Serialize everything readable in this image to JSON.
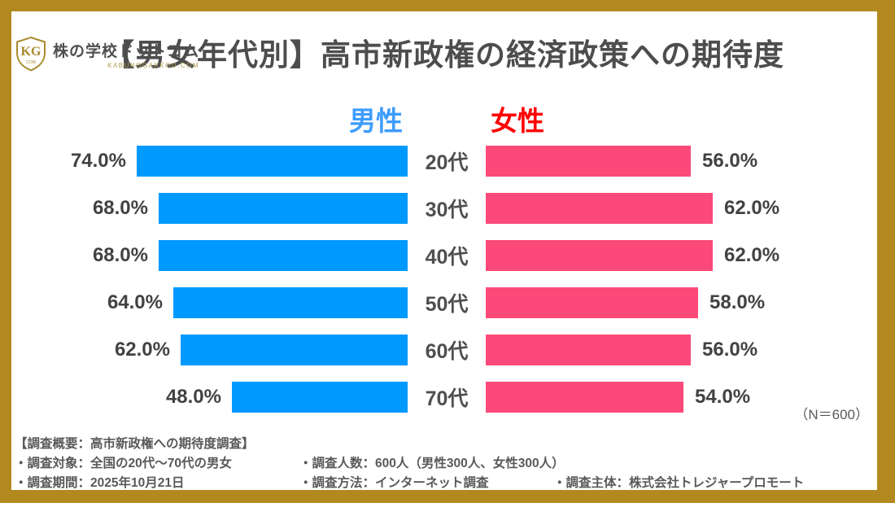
{
  "logo": {
    "monogram": "KG",
    "monogram_sub": "COM",
    "name": "株の学校ドットコム",
    "domain": "KABUNOGAKKOU.COM",
    "gold": "#A98B2D"
  },
  "title": "【男女年代別】高市新政権の経済政策への期待度",
  "chart_data": {
    "type": "bar",
    "orientation": "horizontal-diverging",
    "title": "【男女年代別】高市新政権の経済政策への期待度",
    "categories": [
      "20代",
      "30代",
      "40代",
      "50代",
      "60代",
      "70代"
    ],
    "series": [
      {
        "name": "男性",
        "color": "#0099FF",
        "label_color": "#3E9CFF",
        "values": [
          74.0,
          68.0,
          68.0,
          64.0,
          62.0,
          48.0
        ]
      },
      {
        "name": "女性",
        "color": "#FB4A79",
        "label_color": "#FE0000",
        "values": [
          56.0,
          62.0,
          62.0,
          58.0,
          56.0,
          54.0
        ]
      }
    ],
    "value_suffix": "%",
    "xlim": [
      0,
      100
    ],
    "grid": false,
    "note": "（N＝600）"
  },
  "footer": {
    "heading": "【調査概要：高市新政権への期待度調査】",
    "items": [
      "・調査対象：全国の20代～70代の男女",
      "・調査人数：600人（男性300人、女性300人）",
      "・調査期間：2025年10月21日",
      "・調査方法：インターネット調査",
      "・調査主体：株式会社トレジャープロモート"
    ]
  }
}
